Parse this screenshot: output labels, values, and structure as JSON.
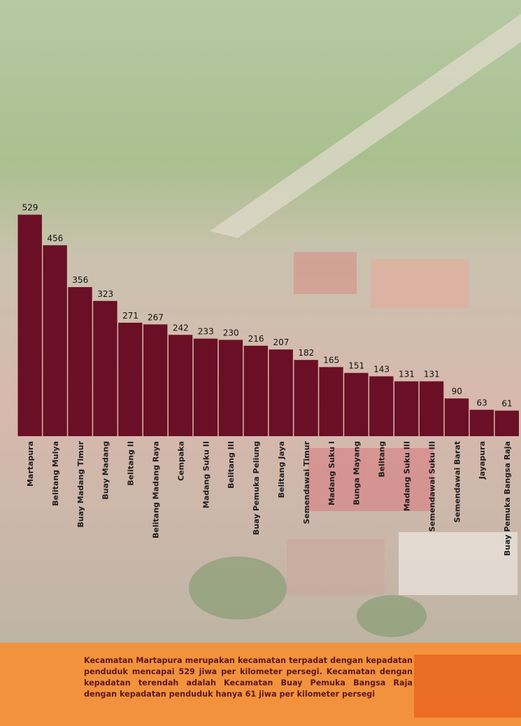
{
  "chart_data": {
    "type": "bar",
    "categories": [
      "Martapura",
      "Belitang Mulya",
      "Buay Madang Timur",
      "Buay Madang",
      "Belitang II",
      "Belitang Madang Raya",
      "Cempaka",
      "Madang Suku II",
      "Belitang III",
      "Buay Pemuka Peliung",
      "Belitang Jaya",
      "Semendawai Timur",
      "Madang Suku I",
      "Bunga Mayang",
      "Belitang",
      "Madang Suku III",
      "Semendawai Suku III",
      "Semendawai Barat",
      "Jayapura",
      "Buay Pemuka Bangsa Raja"
    ],
    "values": [
      529,
      456,
      356,
      323,
      271,
      267,
      242,
      233,
      230,
      216,
      207,
      182,
      165,
      151,
      143,
      131,
      131,
      90,
      63,
      61
    ],
    "color": "#6a0f25"
  },
  "footer": {
    "text": "Kecamatan Martapura merupakan kecamatan terpadat dengan kepadatan penduduk mencapai 529 jiwa per kilometer persegi. Kecamatan dengan kepadatan terendah adalah Kecamatan Buay Pemuka Bangsa Raja dengan kepadatan penduduk hanya 61 jiwa per kilometer persegi"
  }
}
